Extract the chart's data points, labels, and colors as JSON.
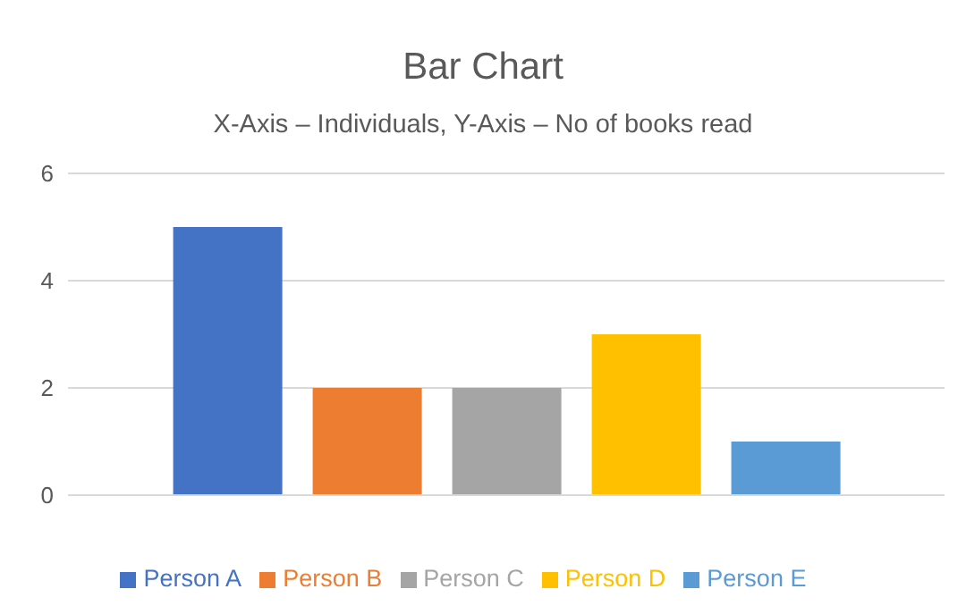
{
  "chart_data": {
    "type": "bar",
    "title": "Bar Chart",
    "subtitle": "X-Axis – Individuals, Y-Axis – No of books read",
    "categories": [
      null
    ],
    "series": [
      {
        "name": "Person A",
        "color": "#4472c4",
        "values": [
          5
        ]
      },
      {
        "name": "Person B",
        "color": "#ed7d31",
        "values": [
          2
        ]
      },
      {
        "name": "Person C",
        "color": "#a5a5a5",
        "values": [
          2
        ]
      },
      {
        "name": "Person D",
        "color": "#ffc000",
        "values": [
          3
        ]
      },
      {
        "name": "Person E",
        "color": "#5b9bd5",
        "values": [
          1
        ]
      }
    ],
    "ylim": [
      0,
      6
    ],
    "yticks": [
      0,
      2,
      4,
      6
    ],
    "grid": "y",
    "legend": "bottom"
  }
}
